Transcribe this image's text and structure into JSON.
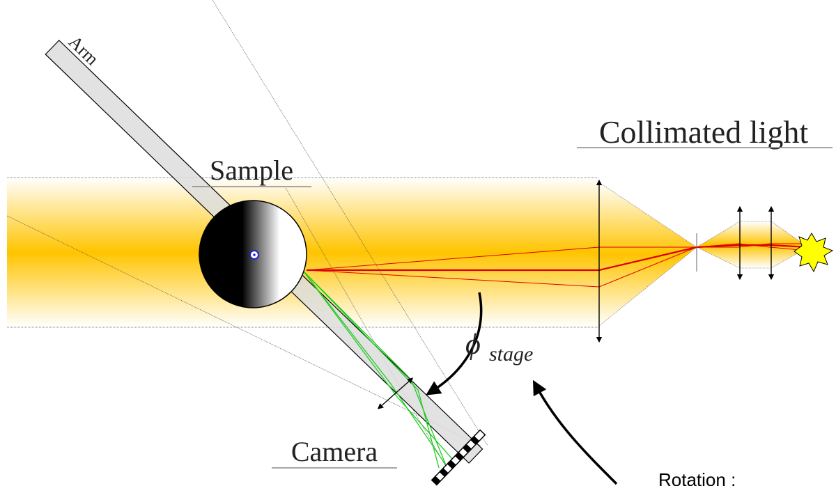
{
  "labels": {
    "arm": "Arm",
    "sample": "Sample",
    "collimated_light": "Collimated light",
    "camera": "Camera",
    "phi": "ϕ",
    "phi_subscript": "stage",
    "rotation": "Rotation :"
  }
}
